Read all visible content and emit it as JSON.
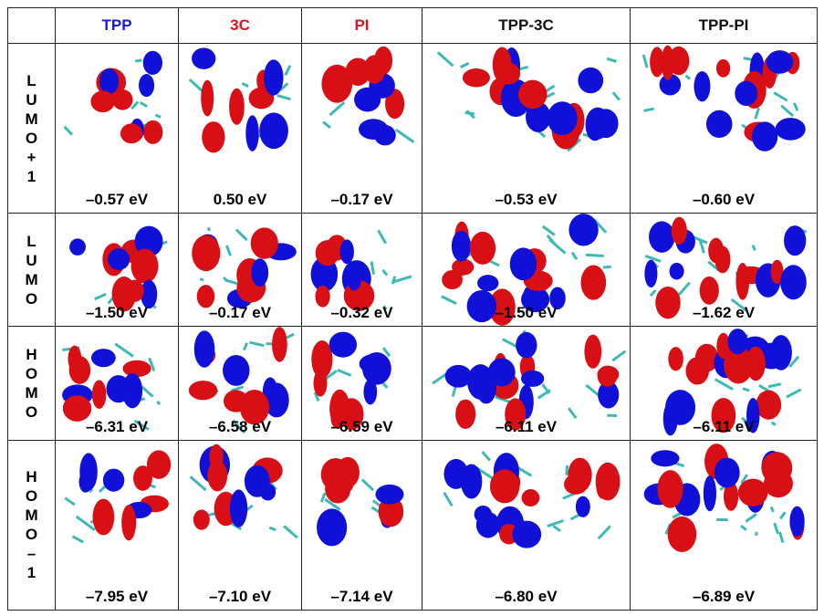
{
  "table": {
    "columns": [
      {
        "label": "TPP",
        "color": "#1a1ad6"
      },
      {
        "label": "3C",
        "color": "#e0141e"
      },
      {
        "label": "PI",
        "color": "#e0141e"
      },
      {
        "label": "TPP-3C",
        "color": "#111111"
      },
      {
        "label": "TPP-PI",
        "color": "#111111"
      }
    ],
    "rows": [
      {
        "label": "LUMO+1",
        "energies": [
          "–0.57 eV",
          "0.50 eV",
          "–0.17 eV",
          "–0.53 eV",
          "–0.60 eV"
        ]
      },
      {
        "label": "LUMO",
        "energies": [
          "–1.50 eV",
          "–0.17 eV",
          "–0.32 eV",
          "–1.50 eV",
          "–1.62 eV"
        ]
      },
      {
        "label": "HOMO",
        "energies": [
          "–6.31 eV",
          "–6.58 eV",
          "–6.59 eV",
          "–6.11 eV",
          "–6.11 eV"
        ]
      },
      {
        "label": "HOMO–1",
        "energies": [
          "–7.95 eV",
          "–7.10 eV",
          "–7.14 eV",
          "–6.80 eV",
          "–6.89 eV"
        ]
      }
    ]
  }
}
